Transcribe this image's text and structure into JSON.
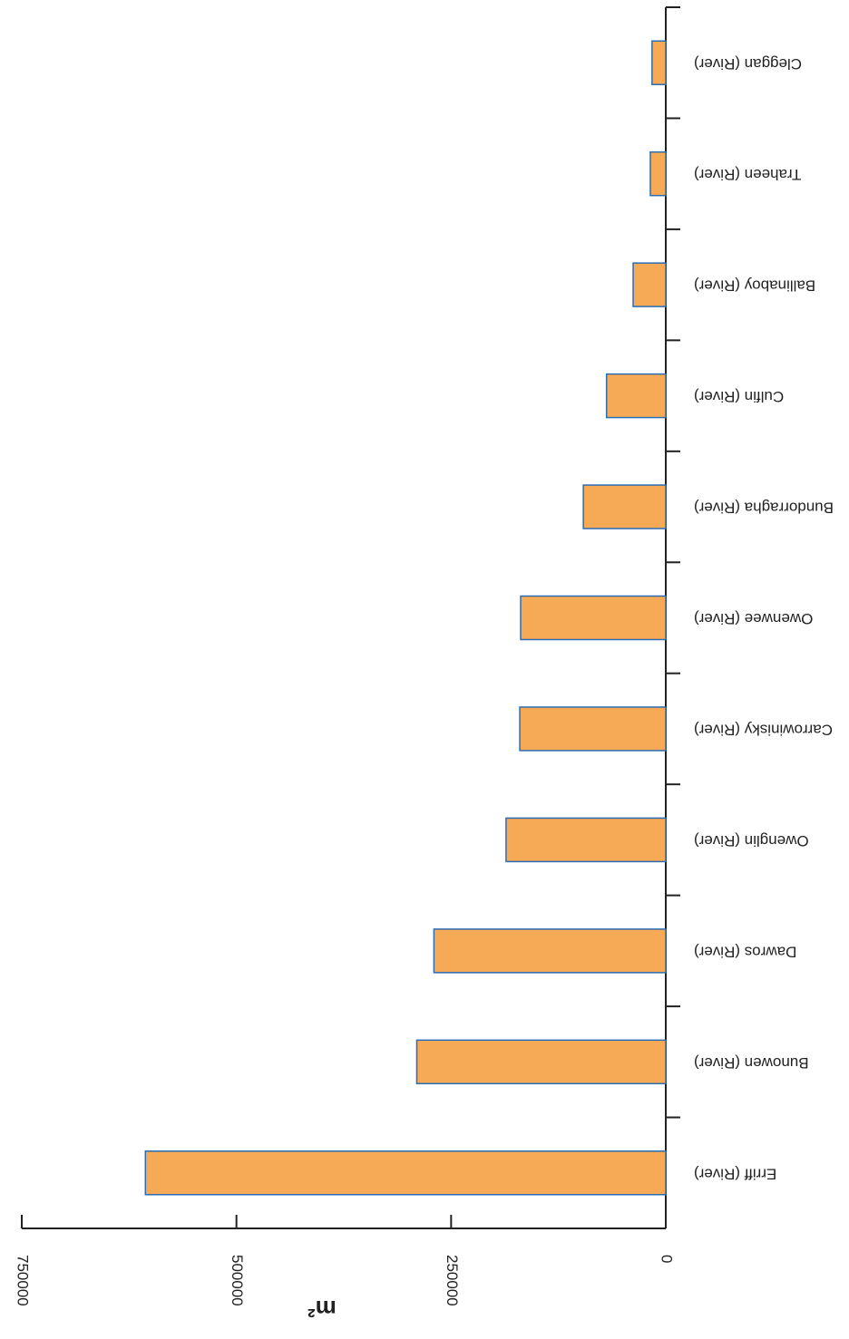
{
  "chart_data": {
    "type": "bar",
    "orientation": "horizontal",
    "x_label": "m²",
    "categories": [
      "Erriff (River)",
      "Bunowen (River)",
      "Dawros (River)",
      "Owenglin (River)",
      "Carrowinisky (River)",
      "Owenwee (River)",
      "Bundorragha (River)",
      "Culfin (River)",
      "Ballinaboy (River)",
      "Traheen (River)",
      "Cleggan (River)"
    ],
    "values": [
      606000,
      290000,
      270000,
      186000,
      170000,
      169000,
      96000,
      69000,
      38000,
      18000,
      16000
    ],
    "color": "#f7aa55",
    "edge_color": "#2a6db5",
    "xlim": [
      0,
      750000
    ],
    "xticks": [
      0,
      250000,
      500000,
      750000
    ],
    "rotated_180": true
  }
}
